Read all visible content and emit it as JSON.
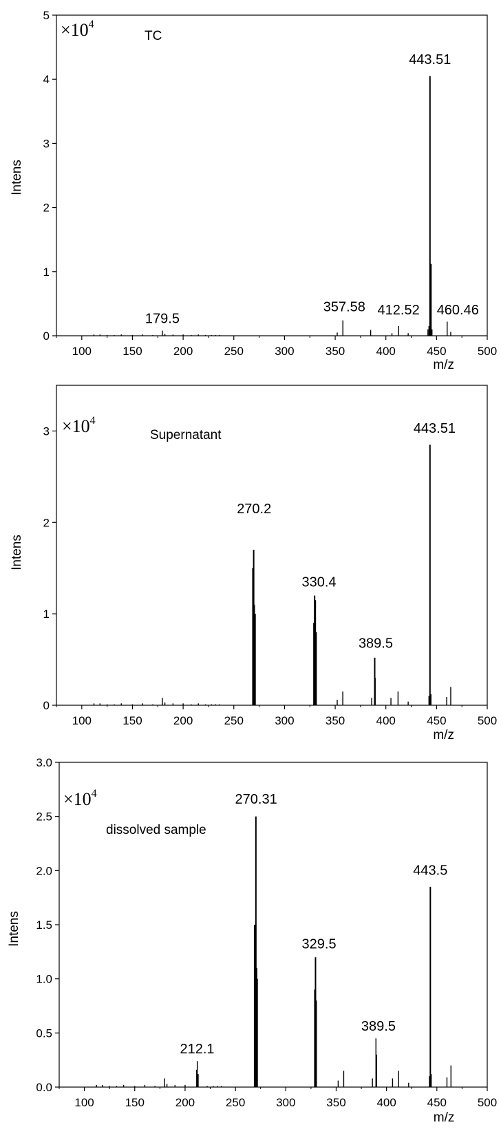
{
  "chart_data": [
    {
      "type": "bar",
      "title": "",
      "sample_label": "TC",
      "multiplier": {
        "base": "×10",
        "exponent": "4"
      },
      "xlabel": "m/z",
      "ylabel": "Intens",
      "xlim": [
        75,
        500
      ],
      "ylim": [
        0,
        5
      ],
      "xticks": [
        100,
        150,
        200,
        250,
        300,
        350,
        400,
        450,
        500
      ],
      "xtick_labels": [
        "100",
        "150",
        "200",
        "250",
        "300",
        "350",
        "400",
        "450",
        "500"
      ],
      "yticks": [
        0,
        1,
        2,
        3,
        4,
        5
      ],
      "ytick_labels": [
        "0",
        "1",
        "2",
        "3",
        "4",
        "5"
      ],
      "peaks": [
        {
          "mz": 112,
          "intensity": 0.02
        },
        {
          "mz": 118,
          "intensity": 0.02
        },
        {
          "mz": 125,
          "intensity": 0.01
        },
        {
          "mz": 132,
          "intensity": 0.01
        },
        {
          "mz": 139,
          "intensity": 0.02
        },
        {
          "mz": 150,
          "intensity": 0.01
        },
        {
          "mz": 160,
          "intensity": 0.02
        },
        {
          "mz": 170,
          "intensity": 0.01
        },
        {
          "mz": 179.5,
          "intensity": 0.08
        },
        {
          "mz": 182,
          "intensity": 0.03
        },
        {
          "mz": 190,
          "intensity": 0.02
        },
        {
          "mz": 200,
          "intensity": 0.02
        },
        {
          "mz": 208,
          "intensity": 0.01
        },
        {
          "mz": 215,
          "intensity": 0.02
        },
        {
          "mz": 222,
          "intensity": 0.01
        },
        {
          "mz": 228,
          "intensity": 0.01
        },
        {
          "mz": 232,
          "intensity": 0.01
        },
        {
          "mz": 236,
          "intensity": 0.01
        },
        {
          "mz": 352,
          "intensity": 0.05
        },
        {
          "mz": 357.58,
          "intensity": 0.24
        },
        {
          "mz": 385,
          "intensity": 0.09
        },
        {
          "mz": 406,
          "intensity": 0.04
        },
        {
          "mz": 412.52,
          "intensity": 0.15
        },
        {
          "mz": 422,
          "intensity": 0.04
        },
        {
          "mz": 441.5,
          "intensity": 0.1
        },
        {
          "mz": 442.5,
          "intensity": 0.15
        },
        {
          "mz": 443.51,
          "intensity": 4.05
        },
        {
          "mz": 444.5,
          "intensity": 1.12
        },
        {
          "mz": 445.5,
          "intensity": 0.1
        },
        {
          "mz": 460.46,
          "intensity": 0.22
        },
        {
          "mz": 464,
          "intensity": 0.06
        }
      ],
      "annotations": [
        {
          "text": "179.5",
          "mz": 179.5,
          "intensity": 0.2
        },
        {
          "text": "357.58",
          "mz": 359,
          "intensity": 0.38
        },
        {
          "text": "412.52",
          "mz": 412.5,
          "intensity": 0.33
        },
        {
          "text": "460.46",
          "mz": 471,
          "intensity": 0.33
        },
        {
          "text": "443.51",
          "mz": 443.5,
          "intensity": 4.24
        }
      ]
    },
    {
      "type": "bar",
      "title": "",
      "sample_label": "Supernatant",
      "multiplier": {
        "base": "×10",
        "exponent": "4"
      },
      "xlabel": "m/z",
      "ylabel": "Intens",
      "xlim": [
        75,
        500
      ],
      "ylim": [
        0,
        3.5
      ],
      "xticks": [
        100,
        150,
        200,
        250,
        300,
        350,
        400,
        450,
        500
      ],
      "xtick_labels": [
        "100",
        "150",
        "200",
        "250",
        "300",
        "350",
        "400",
        "450",
        "500"
      ],
      "yticks": [
        0,
        1,
        2,
        3
      ],
      "ytick_labels": [
        "0",
        "1",
        "2",
        "3"
      ],
      "peaks": [
        {
          "mz": 112,
          "intensity": 0.02
        },
        {
          "mz": 118,
          "intensity": 0.02
        },
        {
          "mz": 125,
          "intensity": 0.01
        },
        {
          "mz": 132,
          "intensity": 0.01
        },
        {
          "mz": 139,
          "intensity": 0.02
        },
        {
          "mz": 150,
          "intensity": 0.01
        },
        {
          "mz": 160,
          "intensity": 0.02
        },
        {
          "mz": 170,
          "intensity": 0.01
        },
        {
          "mz": 179.5,
          "intensity": 0.08
        },
        {
          "mz": 182,
          "intensity": 0.03
        },
        {
          "mz": 190,
          "intensity": 0.02
        },
        {
          "mz": 200,
          "intensity": 0.02
        },
        {
          "mz": 208,
          "intensity": 0.01
        },
        {
          "mz": 215,
          "intensity": 0.02
        },
        {
          "mz": 222,
          "intensity": 0.01
        },
        {
          "mz": 228,
          "intensity": 0.01
        },
        {
          "mz": 232,
          "intensity": 0.01
        },
        {
          "mz": 236,
          "intensity": 0.01
        },
        {
          "mz": 268.8,
          "intensity": 1.5
        },
        {
          "mz": 269.6,
          "intensity": 1.7
        },
        {
          "mz": 270.2,
          "intensity": 1.1
        },
        {
          "mz": 271,
          "intensity": 1.0
        },
        {
          "mz": 329,
          "intensity": 0.9
        },
        {
          "mz": 329.7,
          "intensity": 1.2
        },
        {
          "mz": 330.4,
          "intensity": 1.15
        },
        {
          "mz": 331.2,
          "intensity": 0.8
        },
        {
          "mz": 352,
          "intensity": 0.06
        },
        {
          "mz": 357.5,
          "intensity": 0.15
        },
        {
          "mz": 386,
          "intensity": 0.08
        },
        {
          "mz": 389,
          "intensity": 0.52
        },
        {
          "mz": 389.5,
          "intensity": 0.3
        },
        {
          "mz": 405,
          "intensity": 0.08
        },
        {
          "mz": 412,
          "intensity": 0.15
        },
        {
          "mz": 422,
          "intensity": 0.04
        },
        {
          "mz": 442.5,
          "intensity": 0.1
        },
        {
          "mz": 443.51,
          "intensity": 2.85
        },
        {
          "mz": 444.5,
          "intensity": 0.12
        },
        {
          "mz": 460,
          "intensity": 0.09
        },
        {
          "mz": 464,
          "intensity": 0.2
        }
      ],
      "annotations": [
        {
          "text": "270.2",
          "mz": 270,
          "intensity": 2.1
        },
        {
          "text": "330.4",
          "mz": 334,
          "intensity": 1.3
        },
        {
          "text": "389.5",
          "mz": 390,
          "intensity": 0.63
        },
        {
          "text": "443.51",
          "mz": 448,
          "intensity": 2.98
        }
      ]
    },
    {
      "type": "bar",
      "title": "",
      "sample_label": "dissolved sample",
      "multiplier": {
        "base": "×10",
        "exponent": "4"
      },
      "xlabel": "m/z",
      "ylabel": "Intens",
      "xlim": [
        75,
        500
      ],
      "ylim": [
        0,
        3.0
      ],
      "xticks": [
        100,
        150,
        200,
        250,
        300,
        350,
        400,
        450,
        500
      ],
      "xtick_labels": [
        "100",
        "150",
        "200",
        "250",
        "300",
        "350",
        "400",
        "450",
        "500"
      ],
      "yticks": [
        0,
        0.5,
        1.0,
        1.5,
        2.0,
        2.5,
        3.0
      ],
      "ytick_labels": [
        "0.0",
        "0.5",
        "1.0",
        "1.5",
        "2.0",
        "2.5",
        "3.0"
      ],
      "peaks": [
        {
          "mz": 112,
          "intensity": 0.02
        },
        {
          "mz": 118,
          "intensity": 0.02
        },
        {
          "mz": 125,
          "intensity": 0.01
        },
        {
          "mz": 132,
          "intensity": 0.01
        },
        {
          "mz": 139,
          "intensity": 0.02
        },
        {
          "mz": 150,
          "intensity": 0.01
        },
        {
          "mz": 160,
          "intensity": 0.02
        },
        {
          "mz": 170,
          "intensity": 0.01
        },
        {
          "mz": 179.5,
          "intensity": 0.08
        },
        {
          "mz": 182,
          "intensity": 0.03
        },
        {
          "mz": 190,
          "intensity": 0.02
        },
        {
          "mz": 200,
          "intensity": 0.02
        },
        {
          "mz": 211.5,
          "intensity": 0.16
        },
        {
          "mz": 212.1,
          "intensity": 0.24
        },
        {
          "mz": 213,
          "intensity": 0.12
        },
        {
          "mz": 222,
          "intensity": 0.01
        },
        {
          "mz": 228,
          "intensity": 0.01
        },
        {
          "mz": 232,
          "intensity": 0.01
        },
        {
          "mz": 236,
          "intensity": 0.01
        },
        {
          "mz": 269,
          "intensity": 1.5
        },
        {
          "mz": 270.31,
          "intensity": 2.5
        },
        {
          "mz": 271,
          "intensity": 1.1
        },
        {
          "mz": 271.6,
          "intensity": 1.0
        },
        {
          "mz": 328.8,
          "intensity": 0.9
        },
        {
          "mz": 329.5,
          "intensity": 1.2
        },
        {
          "mz": 330.2,
          "intensity": 0.8
        },
        {
          "mz": 352,
          "intensity": 0.06
        },
        {
          "mz": 357.5,
          "intensity": 0.15
        },
        {
          "mz": 386,
          "intensity": 0.08
        },
        {
          "mz": 389.5,
          "intensity": 0.45
        },
        {
          "mz": 390.2,
          "intensity": 0.3
        },
        {
          "mz": 406,
          "intensity": 0.08
        },
        {
          "mz": 412,
          "intensity": 0.15
        },
        {
          "mz": 422,
          "intensity": 0.04
        },
        {
          "mz": 442.6,
          "intensity": 0.1
        },
        {
          "mz": 443.5,
          "intensity": 1.85
        },
        {
          "mz": 444.4,
          "intensity": 0.12
        },
        {
          "mz": 460,
          "intensity": 0.09
        },
        {
          "mz": 464,
          "intensity": 0.2
        }
      ],
      "annotations": [
        {
          "text": "212.1",
          "mz": 212,
          "intensity": 0.31
        },
        {
          "text": "270.31",
          "mz": 270.5,
          "intensity": 2.62
        },
        {
          "text": "329.5",
          "mz": 333,
          "intensity": 1.28
        },
        {
          "text": "389.5",
          "mz": 392,
          "intensity": 0.52
        },
        {
          "text": "443.5",
          "mz": 443.5,
          "intensity": 1.96
        }
      ]
    }
  ]
}
